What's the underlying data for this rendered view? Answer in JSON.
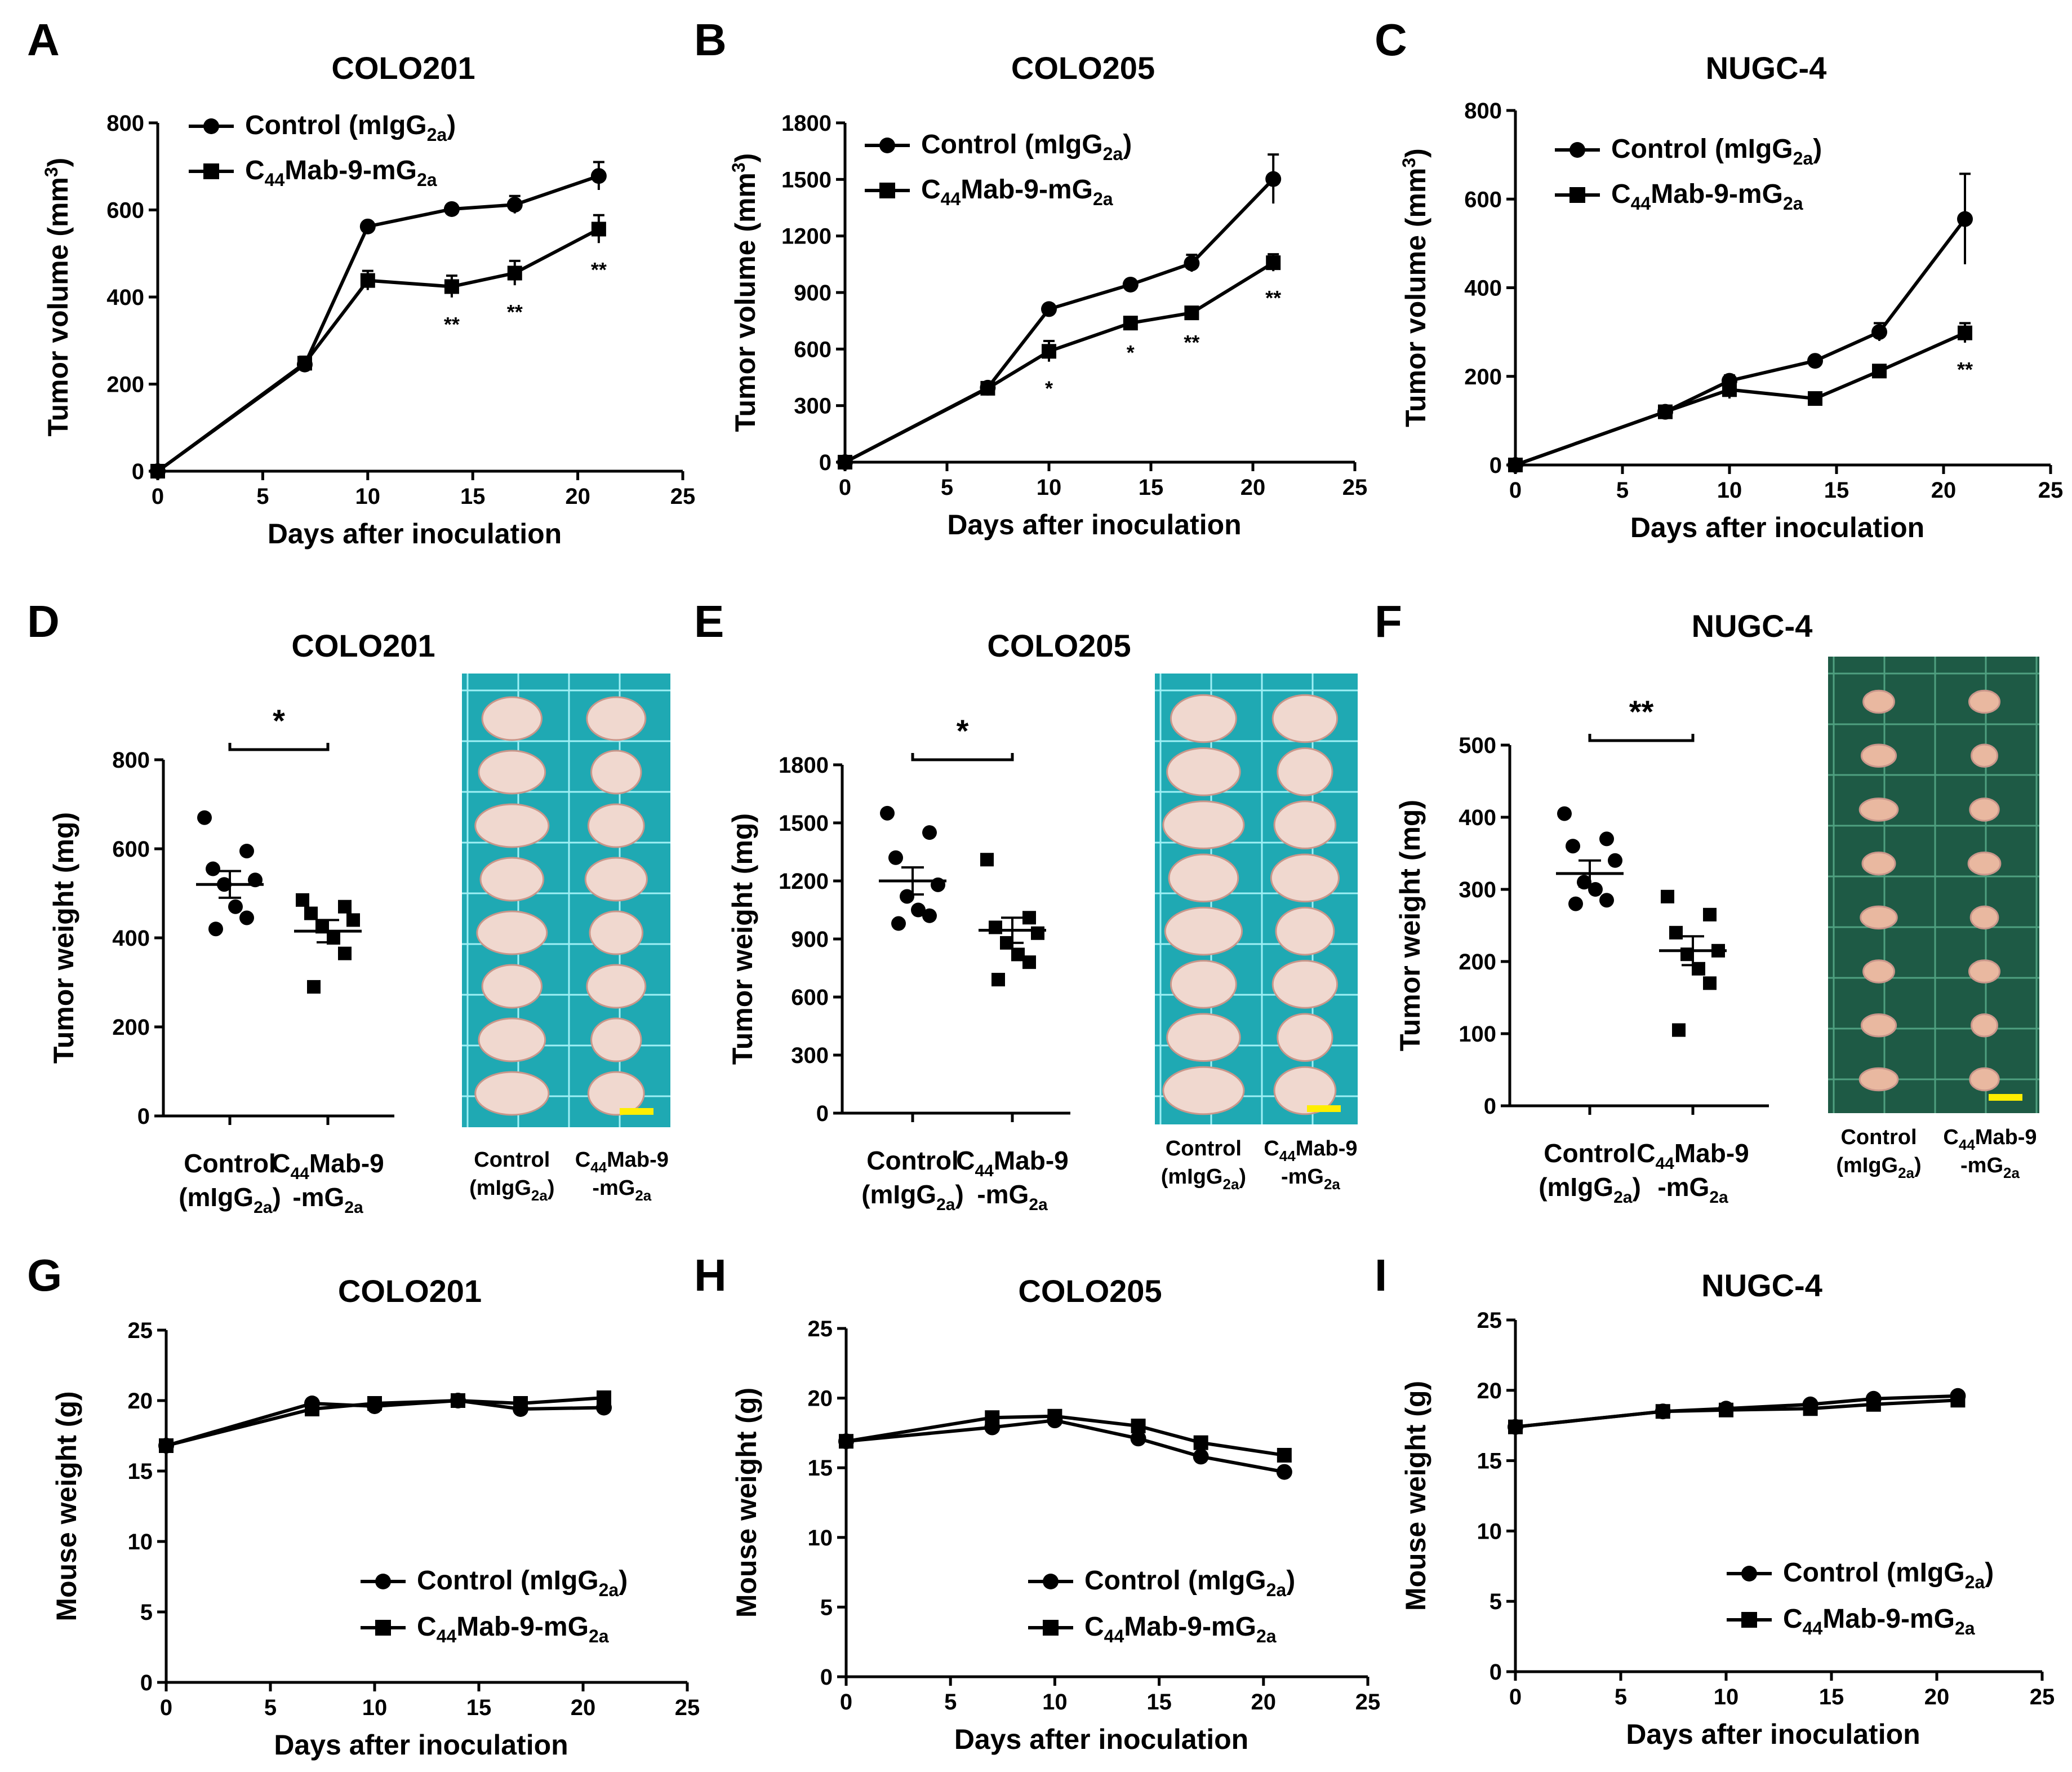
{
  "figure": {
    "legend": {
      "control": "Control (mIgG",
      "control_sub": "2a",
      "control_end": ")",
      "treat_pre": "C",
      "treat_sub1": "44",
      "treat_mid": "Mab-9-mG",
      "treat_sub2": "2a"
    },
    "xcats": {
      "control_line1": "Control",
      "control_line2": "(mIgG",
      "control_sub": "2a",
      "control_end": ")",
      "treat_line1_pre": "C",
      "treat_line1_sub": "44",
      "treat_line1_end": "Mab-9",
      "treat_line2": "-mG",
      "treat_line2_sub": "2a"
    },
    "photo_labels": {
      "control_line1": "Control",
      "control_line2": "(mIgG",
      "control_sub": "2a",
      "control_end": ")",
      "treat_line1_pre": "C",
      "treat_line1_sub": "44",
      "treat_line1_end": "Mab-9",
      "treat_line2": "-mG",
      "treat_line2_sub": "2a"
    },
    "colors": {
      "ink": "#000000",
      "photo_bg_cyan": "#1fa9b3",
      "photo_bg_green": "#1e5a45",
      "scale_bar": "#ffee00"
    }
  },
  "chart_data": [
    {
      "panel": "A",
      "type": "line",
      "title": "COLO201",
      "xlabel": "Days after inoculation",
      "ylabel": "Tumor volume (mm3)",
      "ylabel_main": "Tumor volume (mm",
      "ylabel_sup": "3",
      "ylabel_end": ")",
      "xlim": [
        0,
        25
      ],
      "xticks": [
        0,
        5,
        10,
        15,
        20,
        25
      ],
      "ylim": [
        0,
        800
      ],
      "yticks": [
        0,
        200,
        400,
        600,
        800
      ],
      "x": [
        0,
        7,
        10,
        14,
        17,
        21
      ],
      "series": [
        {
          "name": "Control (mIgG2a)",
          "marker": "circle",
          "values": [
            0,
            245,
            562,
            602,
            612,
            678
          ],
          "errors": [
            0,
            15,
            8,
            8,
            20,
            32
          ]
        },
        {
          "name": "C44Mab-9-mG2a",
          "marker": "square",
          "values": [
            0,
            248,
            438,
            424,
            455,
            556
          ],
          "errors": [
            0,
            15,
            22,
            25,
            28,
            32
          ]
        }
      ],
      "significance": [
        {
          "x": 14,
          "label": "**"
        },
        {
          "x": 17,
          "label": "**"
        },
        {
          "x": 21,
          "label": "**"
        }
      ]
    },
    {
      "panel": "B",
      "type": "line",
      "title": "COLO205",
      "xlabel": "Days after inoculation",
      "ylabel": "Tumor volume (mm3)",
      "ylabel_main": "Tumor volume (mm",
      "ylabel_sup": "3",
      "ylabel_end": ")",
      "xlim": [
        0,
        25
      ],
      "xticks": [
        0,
        5,
        10,
        15,
        20,
        25
      ],
      "ylim": [
        0,
        1800
      ],
      "yticks": [
        0,
        300,
        600,
        900,
        1200,
        1500,
        1800
      ],
      "x": [
        0,
        7,
        10,
        14,
        17,
        21
      ],
      "series": [
        {
          "name": "Control (mIgG2a)",
          "marker": "circle",
          "values": [
            0,
            395,
            812,
            942,
            1055,
            1502
          ],
          "errors": [
            0,
            12,
            15,
            12,
            45,
            130
          ]
        },
        {
          "name": "C44Mab-9-mG2a",
          "marker": "square",
          "values": [
            0,
            392,
            588,
            738,
            792,
            1058
          ],
          "errors": [
            0,
            12,
            55,
            15,
            15,
            45
          ]
        }
      ],
      "significance": [
        {
          "x": 10,
          "label": "*"
        },
        {
          "x": 14,
          "label": "*"
        },
        {
          "x": 17,
          "label": "**"
        },
        {
          "x": 21,
          "label": "**"
        }
      ]
    },
    {
      "panel": "C",
      "type": "line",
      "title": "NUGC-4",
      "xlabel": "Days after inoculation",
      "ylabel": "Tumor volume (mm3)",
      "ylabel_main": "Tumor volume (mm",
      "ylabel_sup": "3",
      "ylabel_end": ")",
      "xlim": [
        0,
        25
      ],
      "xticks": [
        0,
        5,
        10,
        15,
        20,
        25
      ],
      "ylim": [
        0,
        800
      ],
      "yticks": [
        0,
        200,
        400,
        600,
        800
      ],
      "x": [
        0,
        7,
        10,
        14,
        17,
        21
      ],
      "series": [
        {
          "name": "Control (mIgG2a)",
          "marker": "circle",
          "values": [
            0,
            120,
            190,
            235,
            300,
            555
          ],
          "errors": [
            0,
            8,
            12,
            8,
            20,
            102
          ]
        },
        {
          "name": "C44Mab-9-mG2a",
          "marker": "square",
          "values": [
            0,
            120,
            170,
            150,
            212,
            298
          ],
          "errors": [
            0,
            8,
            20,
            8,
            10,
            22
          ]
        }
      ],
      "significance": [
        {
          "x": 21,
          "label": "**"
        }
      ]
    },
    {
      "panel": "D",
      "type": "scatter",
      "title": "COLO201",
      "ylabel": "Tumor weight (mg)",
      "ylim": [
        0,
        800
      ],
      "yticks": [
        0,
        200,
        400,
        600,
        800
      ],
      "groups": [
        {
          "name": "Control (mIgG2a)",
          "marker": "circle",
          "values": [
            670,
            595,
            555,
            530,
            520,
            470,
            445,
            420
          ],
          "mean": 520,
          "sem": 30
        },
        {
          "name": "C44Mab-9-mG2a",
          "marker": "square",
          "values": [
            485,
            470,
            455,
            440,
            425,
            400,
            365,
            290
          ],
          "mean": 415,
          "sem": 25
        }
      ],
      "significance": "*"
    },
    {
      "panel": "E",
      "type": "scatter",
      "title": "COLO205",
      "ylabel": "Tumor weight (mg)",
      "ylim": [
        0,
        1800
      ],
      "yticks": [
        0,
        300,
        600,
        900,
        1200,
        1500,
        1800
      ],
      "groups": [
        {
          "name": "Control (mIgG2a)",
          "marker": "circle",
          "values": [
            1550,
            1450,
            1320,
            1180,
            1120,
            1050,
            1020,
            980
          ],
          "mean": 1200,
          "sem": 70
        },
        {
          "name": "C44Mab-9-mG2a",
          "marker": "square",
          "values": [
            1310,
            1010,
            960,
            930,
            880,
            820,
            780,
            690
          ],
          "mean": 945,
          "sem": 65
        }
      ],
      "significance": "*"
    },
    {
      "panel": "F",
      "type": "scatter",
      "title": "NUGC-4",
      "ylabel": "Tumor weight (mg)",
      "ylim": [
        0,
        500
      ],
      "yticks": [
        0,
        100,
        200,
        300,
        400,
        500
      ],
      "groups": [
        {
          "name": "Control (mIgG2a)",
          "marker": "circle",
          "values": [
            405,
            370,
            360,
            340,
            310,
            300,
            285,
            280
          ],
          "mean": 322,
          "sem": 18
        },
        {
          "name": "C44Mab-9-mG2a",
          "marker": "square",
          "values": [
            290,
            265,
            240,
            215,
            210,
            190,
            170,
            105
          ],
          "mean": 215,
          "sem": 20
        }
      ],
      "significance": "**"
    },
    {
      "panel": "G",
      "type": "line",
      "title": "COLO201",
      "xlabel": "Days after inoculation",
      "ylabel": "Mouse weight (g)",
      "xlim": [
        0,
        25
      ],
      "xticks": [
        0,
        5,
        10,
        15,
        20,
        25
      ],
      "ylim": [
        0,
        25
      ],
      "yticks": [
        0,
        5,
        10,
        15,
        20,
        25
      ],
      "x": [
        0,
        7,
        10,
        14,
        17,
        21
      ],
      "series": [
        {
          "name": "Control (mIgG2a)",
          "marker": "circle",
          "values": [
            16.8,
            19.8,
            19.6,
            20.0,
            19.4,
            19.5
          ]
        },
        {
          "name": "C44Mab-9-mG2a",
          "marker": "square",
          "values": [
            16.8,
            19.4,
            19.8,
            20.0,
            19.8,
            20.2
          ]
        }
      ]
    },
    {
      "panel": "H",
      "type": "line",
      "title": "COLO205",
      "xlabel": "Days after inoculation",
      "ylabel": "Mouse weight (g)",
      "xlim": [
        0,
        25
      ],
      "xticks": [
        0,
        5,
        10,
        15,
        20,
        25
      ],
      "ylim": [
        0,
        25
      ],
      "yticks": [
        0,
        5,
        10,
        15,
        20,
        25
      ],
      "x": [
        0,
        7,
        10,
        14,
        17,
        21
      ],
      "series": [
        {
          "name": "Control (mIgG2a)",
          "marker": "circle",
          "values": [
            16.9,
            17.9,
            18.4,
            17.1,
            15.8,
            14.7
          ]
        },
        {
          "name": "C44Mab-9-mG2a",
          "marker": "square",
          "values": [
            16.9,
            18.6,
            18.7,
            18.0,
            16.8,
            15.9
          ]
        }
      ]
    },
    {
      "panel": "I",
      "type": "line",
      "title": "NUGC-4",
      "xlabel": "Days after inoculation",
      "ylabel": "Mouse weight (g)",
      "xlim": [
        0,
        25
      ],
      "xticks": [
        0,
        5,
        10,
        15,
        20,
        25
      ],
      "ylim": [
        0,
        25
      ],
      "yticks": [
        0,
        5,
        10,
        15,
        20,
        25
      ],
      "x": [
        0,
        7,
        10,
        14,
        17,
        21
      ],
      "series": [
        {
          "name": "Control (mIgG2a)",
          "marker": "circle",
          "values": [
            17.4,
            18.5,
            18.7,
            19.0,
            19.4,
            19.6
          ]
        },
        {
          "name": "C44Mab-9-mG2a",
          "marker": "square",
          "values": [
            17.4,
            18.5,
            18.6,
            18.7,
            19.0,
            19.3
          ]
        }
      ]
    }
  ]
}
